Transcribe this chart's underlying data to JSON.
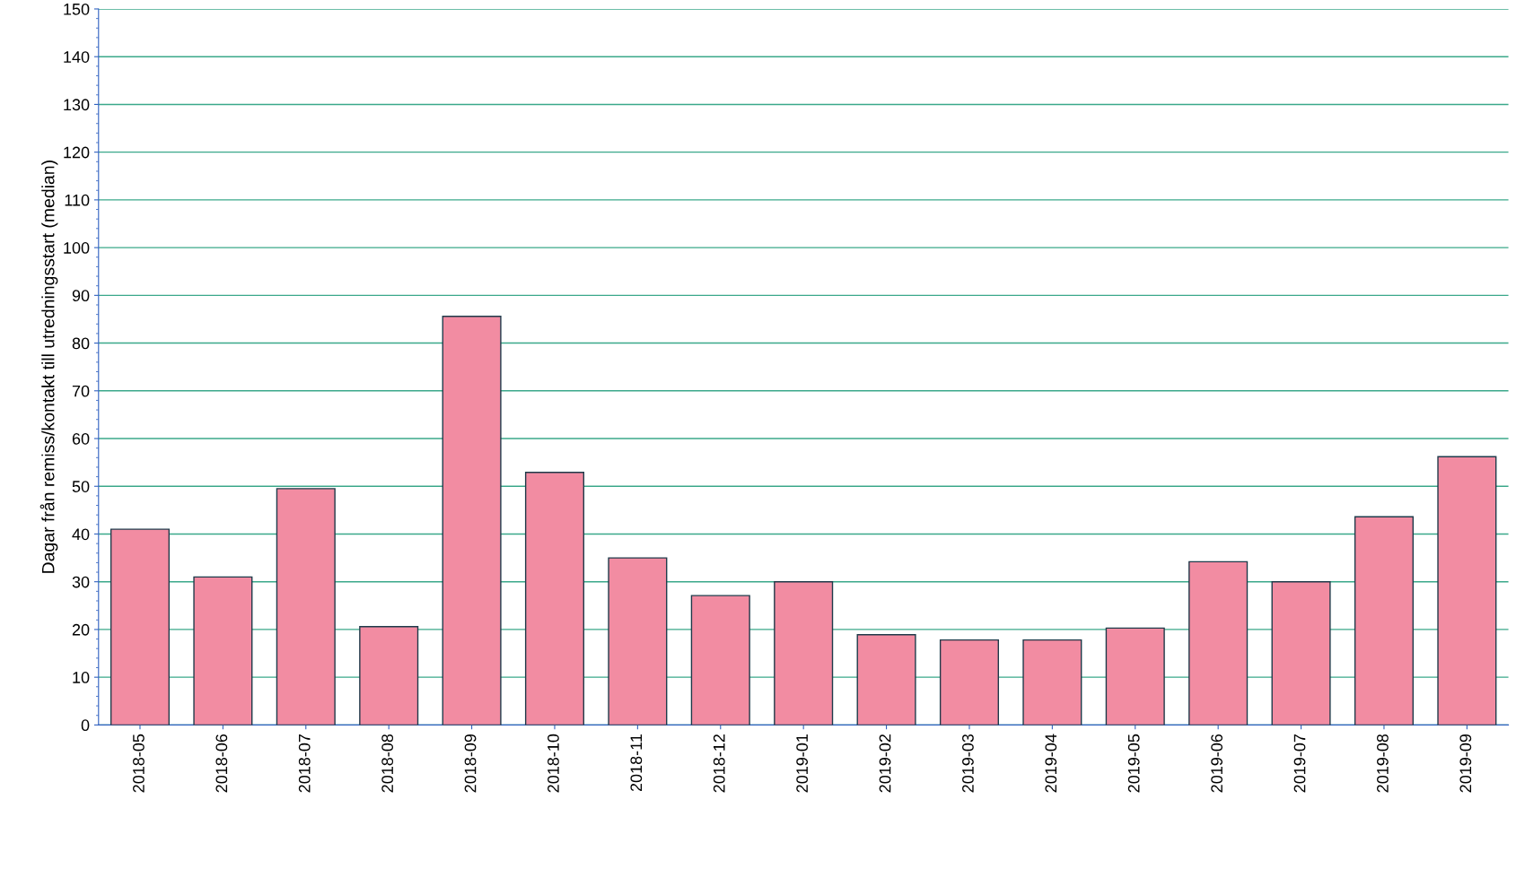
{
  "chart_data": {
    "type": "bar",
    "ylabel": "Dagar från remiss/kontakt till utredningsstart (median)",
    "categories": [
      "2018-05",
      "2018-06",
      "2018-07",
      "2018-08",
      "2018-09",
      "2018-10",
      "2018-11",
      "2018-12",
      "2019-01",
      "2019-02",
      "2019-03",
      "2019-04",
      "2019-05",
      "2019-06",
      "2019-07",
      "2019-08",
      "2019-09"
    ],
    "values": [
      41,
      31,
      49.5,
      20.6,
      85.6,
      52.9,
      35,
      27.1,
      30,
      18.9,
      17.8,
      17.8,
      20.3,
      34.2,
      30,
      43.6,
      56.2
    ],
    "color": "#f28ca2",
    "ylim": [
      0,
      150
    ],
    "yticks": [
      0,
      10,
      20,
      30,
      40,
      50,
      60,
      70,
      80,
      90,
      100,
      110,
      120,
      130,
      140,
      150
    ],
    "grid": "y"
  }
}
